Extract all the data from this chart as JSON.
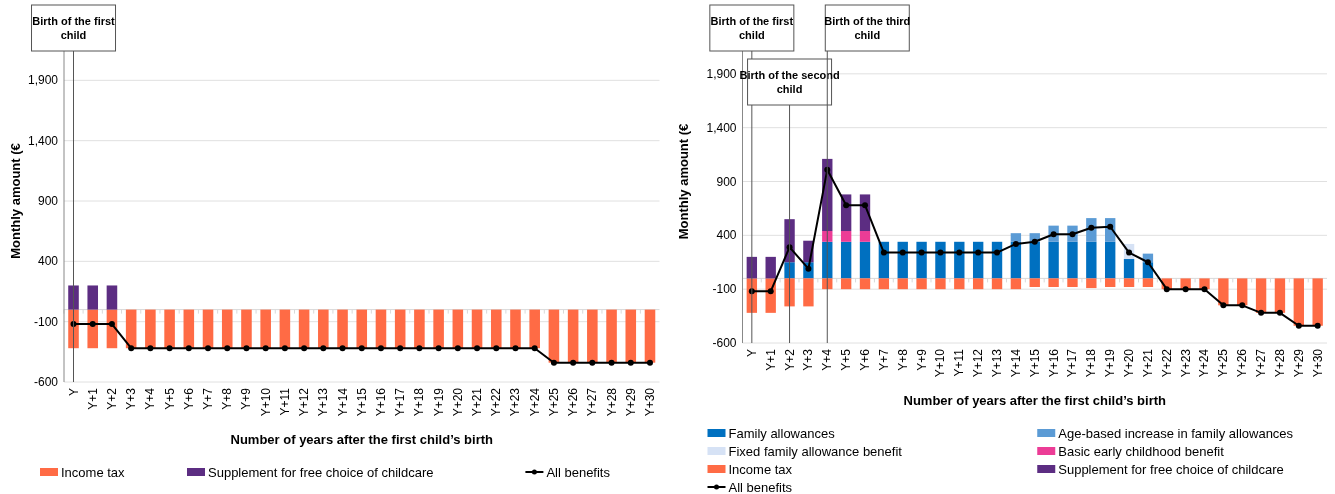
{
  "chart_data": [
    {
      "type": "bar",
      "stacked": true,
      "xlabel": "Number of years after the first child’s birth",
      "ylabel": "Monthly amount (€",
      "ylim": [
        -600,
        2400
      ],
      "yticks": [
        -600,
        -100,
        400,
        {
          "value": 900,
          "label": "900"
        },
        {
          "value": 1400,
          "label": "1,400"
        },
        {
          "value": 1900,
          "label": "1,900"
        }
      ],
      "grid": "y",
      "legend": "bottom",
      "marker": "circle",
      "categories": [
        "Y",
        "Y+1",
        "Y+2",
        "Y+3",
        "Y+4",
        "Y+5",
        "Y+6",
        "Y+7",
        "Y+8",
        "Y+9",
        "Y+10",
        "Y+11",
        "Y+12",
        "Y+13",
        "Y+14",
        "Y+15",
        "Y+16",
        "Y+17",
        "Y+18",
        "Y+19",
        "Y+20",
        "Y+21",
        "Y+22",
        "Y+23",
        "Y+24",
        "Y+25",
        "Y+26",
        "Y+27",
        "Y+28",
        "Y+29",
        "Y+30"
      ],
      "ref_lines": [
        {
          "axis": "x",
          "value": "Y",
          "label": "Birth of the first child"
        }
      ],
      "series": [
        {
          "name": "Income tax",
          "color": "#ff6b45",
          "values": [
            -320,
            -320,
            -320,
            -320,
            -320,
            -320,
            -320,
            -320,
            -320,
            -320,
            -320,
            -320,
            -320,
            -320,
            -320,
            -320,
            -320,
            -320,
            -320,
            -320,
            -320,
            -320,
            -320,
            -320,
            -320,
            -440,
            -440,
            -440,
            -440,
            -440,
            -440
          ]
        },
        {
          "name": "Supplement for free choice of childcare",
          "color": "#5c2d82",
          "values": [
            200,
            200,
            200,
            null,
            null,
            null,
            null,
            null,
            null,
            null,
            null,
            null,
            null,
            null,
            null,
            null,
            null,
            null,
            null,
            null,
            null,
            null,
            null,
            null,
            null,
            null,
            null,
            null,
            null,
            null,
            null
          ]
        },
        {
          "name": "All benefits",
          "type": "line",
          "color": "#000000",
          "values": [
            -120,
            -120,
            -120,
            -320,
            -320,
            -320,
            -320,
            -320,
            -320,
            -320,
            -320,
            -320,
            -320,
            -320,
            -320,
            -320,
            -320,
            -320,
            -320,
            -320,
            -320,
            -320,
            -320,
            -320,
            -320,
            -440,
            -440,
            -440,
            -440,
            -440,
            -440
          ]
        }
      ]
    },
    {
      "type": "bar",
      "stacked": true,
      "xlabel": "Number of years after the first child’s birth",
      "ylabel": "Monthly amount (€",
      "ylim": [
        -600,
        2400
      ],
      "yticks": [
        -600,
        -100,
        400,
        {
          "value": 900,
          "label": "900"
        },
        {
          "value": 1400,
          "label": "1,400"
        },
        {
          "value": 1900,
          "label": "1,900"
        }
      ],
      "grid": "y",
      "legend": "bottom",
      "marker": "circle",
      "categories": [
        "Y",
        "Y+1",
        "Y+2",
        "Y+3",
        "Y+4",
        "Y+5",
        "Y+6",
        "Y+7",
        "Y+8",
        "Y+9",
        "Y+10",
        "Y+11",
        "Y+12",
        "Y+13",
        "Y+14",
        "Y+15",
        "Y+16",
        "Y+17",
        "Y+18",
        "Y+19",
        "Y+20",
        "Y+21",
        "Y+22",
        "Y+23",
        "Y+24",
        "Y+25",
        "Y+26",
        "Y+27",
        "Y+28",
        "Y+29",
        "Y+30"
      ],
      "ref_lines": [
        {
          "axis": "x",
          "value": "Y",
          "label": "Birth of the first child"
        },
        {
          "axis": "x",
          "value": "Y+2",
          "label": "Birth of the second child"
        },
        {
          "axis": "x",
          "value": "Y+4",
          "label": "Birth of the third child"
        }
      ],
      "series": [
        {
          "name": "Family allowances",
          "color": "#0070c0",
          "values": [
            null,
            null,
            150,
            150,
            340,
            340,
            340,
            340,
            340,
            340,
            340,
            340,
            340,
            340,
            340,
            340,
            340,
            340,
            340,
            340,
            180,
            150,
            null,
            null,
            null,
            null,
            null,
            null,
            null,
            null,
            null
          ]
        },
        {
          "name": "Age-based increase in family allowances",
          "color": "#5b9bd5",
          "values": [
            null,
            null,
            null,
            null,
            null,
            null,
            null,
            null,
            null,
            null,
            null,
            null,
            null,
            null,
            80,
            80,
            150,
            150,
            220,
            220,
            null,
            80,
            null,
            null,
            null,
            null,
            null,
            null,
            null,
            null,
            null
          ]
        },
        {
          "name": "Fixed family allowance benefit",
          "color": "#d6e2f5",
          "values": [
            null,
            null,
            null,
            null,
            null,
            null,
            null,
            null,
            null,
            null,
            null,
            null,
            null,
            null,
            null,
            null,
            null,
            null,
            null,
            null,
            140,
            null,
            null,
            null,
            null,
            null,
            null,
            null,
            null,
            null,
            null
          ]
        },
        {
          "name": "Basic early childhood benefit",
          "color": "#ec3c96",
          "values": [
            null,
            null,
            null,
            null,
            100,
            100,
            100,
            null,
            null,
            null,
            null,
            null,
            null,
            null,
            null,
            null,
            null,
            null,
            null,
            null,
            null,
            null,
            null,
            null,
            null,
            null,
            null,
            null,
            null,
            null,
            null
          ]
        },
        {
          "name": "Income tax",
          "color": "#ff6b45",
          "values": [
            -320,
            -320,
            -260,
            -260,
            -100,
            -100,
            -100,
            -100,
            -100,
            -100,
            -100,
            -100,
            -100,
            -100,
            -100,
            -80,
            -80,
            -80,
            -90,
            -80,
            -80,
            -80,
            -100,
            -100,
            -100,
            -250,
            -250,
            -320,
            -320,
            -440,
            -440
          ]
        },
        {
          "name": "Supplement for free choice of childcare",
          "color": "#5c2d82",
          "values": [
            200,
            200,
            400,
            200,
            670,
            340,
            340,
            null,
            null,
            null,
            null,
            null,
            null,
            null,
            null,
            null,
            null,
            null,
            null,
            null,
            null,
            null,
            null,
            null,
            null,
            null,
            null,
            null,
            null,
            null,
            null
          ]
        },
        {
          "name": "All benefits",
          "type": "line",
          "color": "#000000",
          "values": [
            -120,
            -120,
            290,
            90,
            1010,
            680,
            680,
            240,
            240,
            240,
            240,
            240,
            240,
            240,
            320,
            340,
            410,
            410,
            470,
            480,
            240,
            150,
            -100,
            -100,
            -100,
            -250,
            -250,
            -320,
            -320,
            -440,
            -440
          ]
        }
      ]
    }
  ]
}
